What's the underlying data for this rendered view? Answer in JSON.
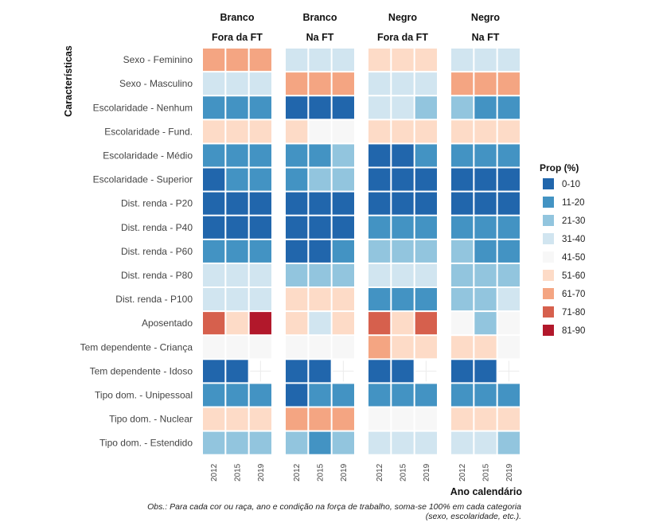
{
  "chart_data": {
    "type": "heatmap",
    "ylabel": "Características",
    "xlabel": "Ano calendário",
    "x": [
      "2012",
      "2015",
      "2019"
    ],
    "categories": [
      "Sexo - Feminino",
      "Sexo - Masculino",
      "Escolaridade - Nenhum",
      "Escolaridade - Fund.",
      "Escolaridade - Médio",
      "Escolaridade - Superior",
      "Dist. renda - P20",
      "Dist. renda - P40",
      "Dist. renda - P60",
      "Dist. renda - P80",
      "Dist. renda - P100",
      "Aposentado",
      "Tem dependente - Criança",
      "Tem dependente - Idoso",
      "Tipo dom. - Unipessoal",
      "Tipo dom. - Nuclear",
      "Tipo dom. - Estendido"
    ],
    "legend": {
      "title": "Prop (%)",
      "position": "right",
      "bins": [
        {
          "label": "0-10",
          "color": "#2166ac"
        },
        {
          "label": "11-20",
          "color": "#4393c3"
        },
        {
          "label": "21-30",
          "color": "#92c5de"
        },
        {
          "label": "31-40",
          "color": "#d1e5f0"
        },
        {
          "label": "41-50",
          "color": "#f7f7f7"
        },
        {
          "label": "51-60",
          "color": "#fddbc7"
        },
        {
          "label": "61-70",
          "color": "#f4a582"
        },
        {
          "label": "71-80",
          "color": "#d6604d"
        },
        {
          "label": "81-90",
          "color": "#b2182b"
        }
      ]
    },
    "panels": [
      {
        "race": "Branco",
        "condition": "Fora da FT",
        "bins": [
          [
            6,
            6,
            6
          ],
          [
            3,
            3,
            3
          ],
          [
            1,
            1,
            1
          ],
          [
            5,
            5,
            5
          ],
          [
            1,
            1,
            1
          ],
          [
            0,
            1,
            1
          ],
          [
            0,
            0,
            0
          ],
          [
            0,
            0,
            0
          ],
          [
            1,
            1,
            1
          ],
          [
            3,
            3,
            3
          ],
          [
            3,
            3,
            3
          ],
          [
            7,
            5,
            8
          ],
          [
            4,
            4,
            4
          ],
          [
            0,
            0,
            null
          ],
          [
            1,
            1,
            1
          ],
          [
            5,
            5,
            5
          ],
          [
            2,
            2,
            2
          ]
        ]
      },
      {
        "race": "Branco",
        "condition": "Na FT",
        "bins": [
          [
            3,
            3,
            3
          ],
          [
            6,
            6,
            6
          ],
          [
            0,
            0,
            0
          ],
          [
            5,
            4,
            4
          ],
          [
            1,
            1,
            2
          ],
          [
            1,
            2,
            2
          ],
          [
            0,
            0,
            0
          ],
          [
            0,
            0,
            0
          ],
          [
            0,
            0,
            1
          ],
          [
            2,
            2,
            2
          ],
          [
            5,
            5,
            5
          ],
          [
            5,
            3,
            5
          ],
          [
            4,
            4,
            4
          ],
          [
            0,
            0,
            null
          ],
          [
            0,
            1,
            1
          ],
          [
            6,
            6,
            6
          ],
          [
            2,
            1,
            2
          ]
        ]
      },
      {
        "race": "Negro",
        "condition": "Fora da FT",
        "bins": [
          [
            5,
            5,
            5
          ],
          [
            3,
            3,
            3
          ],
          [
            3,
            3,
            2
          ],
          [
            5,
            5,
            5
          ],
          [
            0,
            0,
            1
          ],
          [
            0,
            0,
            0
          ],
          [
            0,
            0,
            0
          ],
          [
            1,
            1,
            1
          ],
          [
            2,
            2,
            2
          ],
          [
            3,
            3,
            3
          ],
          [
            1,
            1,
            1
          ],
          [
            7,
            5,
            7
          ],
          [
            6,
            5,
            5
          ],
          [
            0,
            0,
            null
          ],
          [
            1,
            1,
            1
          ],
          [
            4,
            4,
            4
          ],
          [
            3,
            3,
            3
          ]
        ]
      },
      {
        "race": "Negro",
        "condition": "Na FT",
        "bins": [
          [
            3,
            3,
            3
          ],
          [
            6,
            6,
            6
          ],
          [
            2,
            1,
            1
          ],
          [
            5,
            5,
            5
          ],
          [
            1,
            1,
            1
          ],
          [
            0,
            0,
            0
          ],
          [
            0,
            0,
            0
          ],
          [
            1,
            1,
            1
          ],
          [
            2,
            1,
            1
          ],
          [
            2,
            2,
            2
          ],
          [
            2,
            2,
            3
          ],
          [
            4,
            2,
            4
          ],
          [
            5,
            5,
            4
          ],
          [
            0,
            0,
            null
          ],
          [
            1,
            1,
            1
          ],
          [
            5,
            5,
            5
          ],
          [
            3,
            3,
            2
          ]
        ]
      }
    ],
    "note_lines": [
      "Obs.: Para cada cor ou raça, ano e condição na força de trabalho, soma-se 100% em cada categoria",
      "(sexo, escolaridade, etc.)."
    ]
  }
}
